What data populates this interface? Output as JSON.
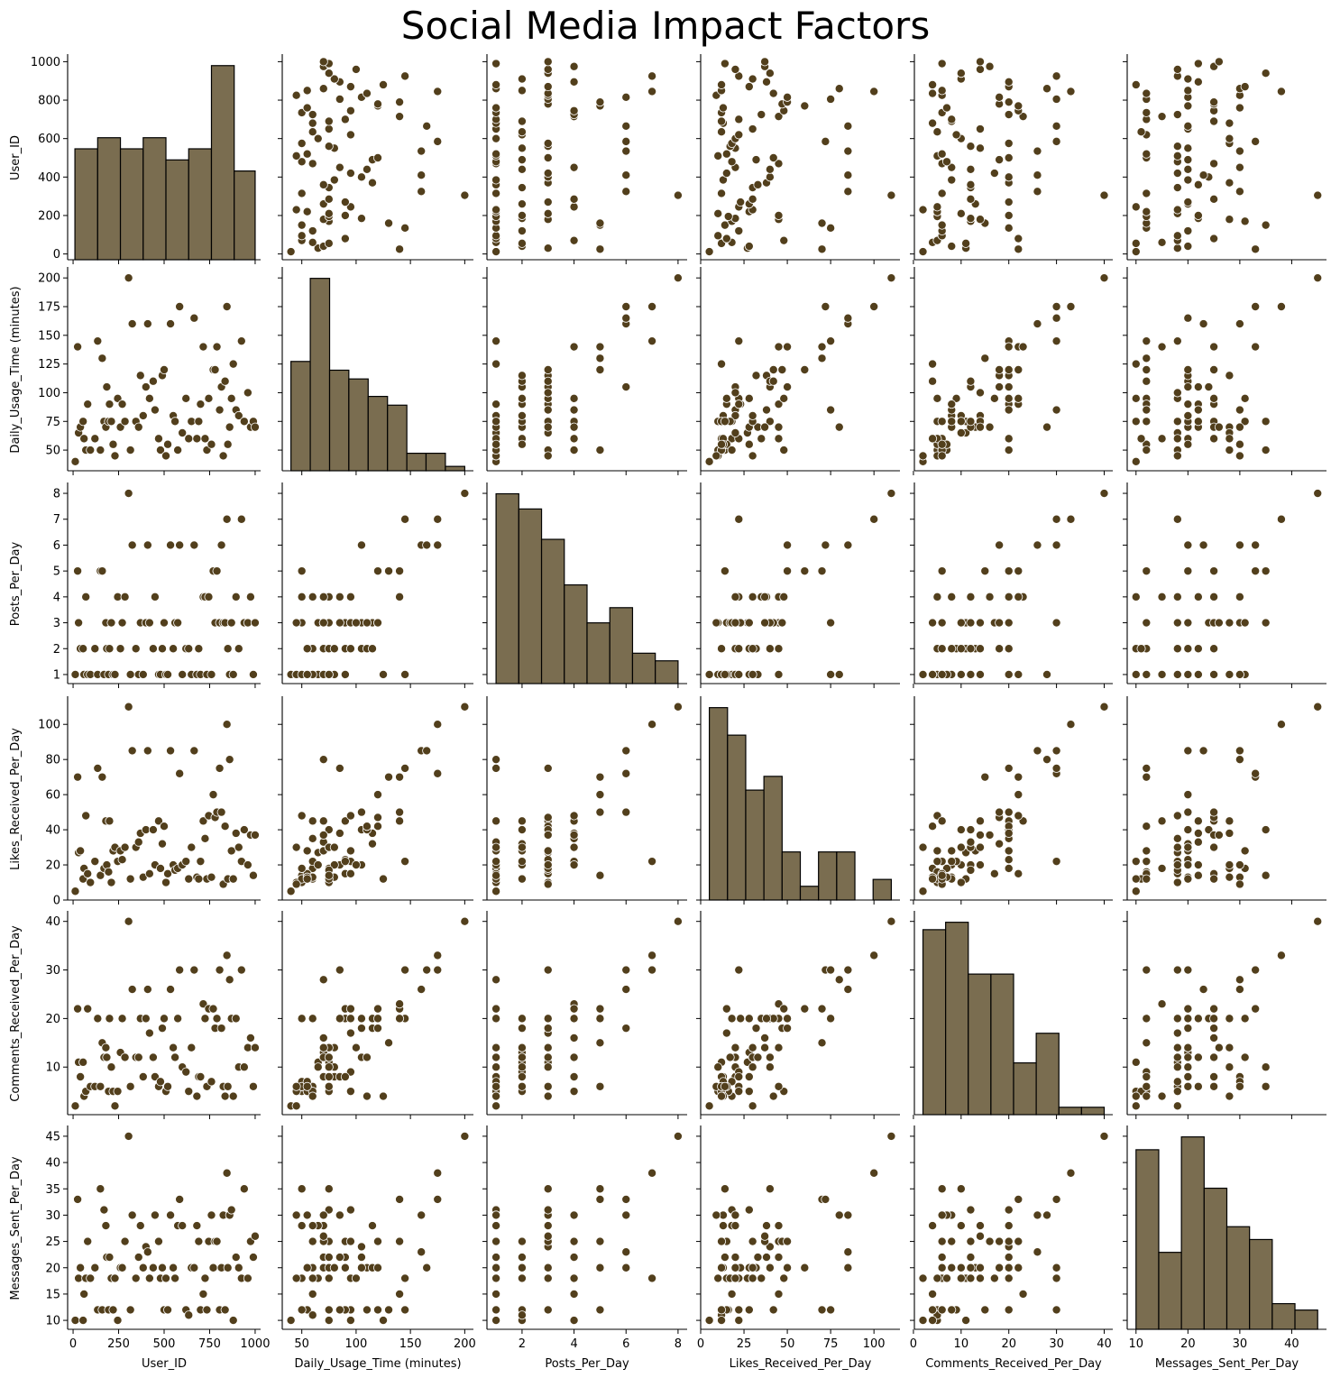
{
  "colors": {
    "point": "#523f1c",
    "point_edge": "#ffffff",
    "bar_fill": "#7a6d50",
    "bar_edge": "#000000",
    "axis": "#000000"
  },
  "chart_data": {
    "type": "scatter",
    "title": "Social Media Impact Factors",
    "variables": [
      "User_ID",
      "Daily_Usage_Time (minutes)",
      "Posts_Per_Day",
      "Likes_Received_Per_Day",
      "Comments_Received_Per_Day",
      "Messages_Sent_Per_Day"
    ],
    "diagonal_type": "histogram",
    "axes": [
      {
        "label": "User_ID",
        "range": [
          -30,
          1030
        ],
        "ticks": [
          0,
          200,
          400,
          600,
          800,
          1000
        ],
        "x_ticks": [
          0,
          250,
          500,
          750,
          1000
        ]
      },
      {
        "label": "Daily_Usage_Time (minutes)",
        "range": [
          32,
          208
        ],
        "ticks": [
          50,
          75,
          100,
          125,
          150,
          175,
          200
        ],
        "x_ticks": [
          50,
          100,
          150,
          200
        ]
      },
      {
        "label": "Posts_Per_Day",
        "range": [
          0.65,
          8.35
        ],
        "ticks": [
          1,
          2,
          3,
          4,
          5,
          6,
          7,
          8
        ],
        "x_ticks": [
          2,
          4,
          6,
          8
        ]
      },
      {
        "label": "Likes_Received_Per_Day",
        "range": [
          0,
          115
        ],
        "ticks": [
          0,
          20,
          40,
          60,
          80,
          100
        ],
        "x_ticks": [
          0,
          25,
          50,
          75,
          100
        ]
      },
      {
        "label": "Comments_Received_Per_Day",
        "range": [
          0.2,
          41.8
        ],
        "ticks": [
          10,
          20,
          30,
          40
        ],
        "x_ticks": [
          0,
          10,
          20,
          30,
          40
        ]
      },
      {
        "label": "Messages_Sent_Per_Day",
        "range": [
          8.3,
          46.7
        ],
        "ticks": [
          10,
          15,
          20,
          25,
          30,
          35,
          40,
          45
        ],
        "x_ticks": [
          10,
          20,
          30,
          40
        ]
      }
    ],
    "histograms": [
      {
        "edges": [
          10,
          135,
          260,
          385,
          510,
          635,
          760,
          885,
          1000
        ],
        "counts": [
          20,
          22,
          20,
          22,
          18,
          20,
          35,
          16
        ]
      },
      {
        "edges": [
          40,
          57.8,
          75.6,
          93.3,
          111.1,
          128.9,
          146.7,
          164.4,
          182.2,
          200
        ],
        "counts": [
          25,
          44,
          23,
          21,
          17,
          15,
          4,
          4,
          1
        ]
      },
      {
        "edges": [
          1,
          1.875,
          2.75,
          3.625,
          4.5,
          5.375,
          6.25,
          7.125,
          8
        ],
        "counts": [
          25,
          23,
          19,
          13,
          8,
          10,
          4,
          3
        ]
      },
      {
        "edges": [
          5,
          15.5,
          26,
          36.5,
          47,
          57.5,
          68,
          78.5,
          89,
          99.5,
          110
        ],
        "counts": [
          28,
          24,
          16,
          18,
          7,
          2,
          7,
          7,
          0,
          3
        ]
      },
      {
        "edges": [
          2,
          6.75,
          11.5,
          16.25,
          21,
          25.75,
          30.5,
          35.25,
          40
        ],
        "counts": [
          25,
          26,
          19,
          19,
          7,
          11,
          1,
          1
        ]
      },
      {
        "edges": [
          10,
          14.375,
          18.75,
          23.125,
          27.5,
          31.875,
          36.25,
          40.625,
          45
        ],
        "counts": [
          28,
          12,
          30,
          22,
          16,
          14,
          4,
          3
        ]
      }
    ],
    "points": [
      [
        12,
        40,
        1,
        5,
        2,
        10
      ],
      [
        25,
        140,
        5,
        70,
        22,
        33
      ],
      [
        30,
        65,
        3,
        27,
        11,
        18
      ],
      [
        40,
        70,
        2,
        28,
        8,
        20
      ],
      [
        55,
        75,
        2,
        12,
        11,
        10
      ],
      [
        60,
        60,
        1,
        18,
        4,
        15
      ],
      [
        70,
        50,
        4,
        48,
        5,
        18
      ],
      [
        80,
        90,
        1,
        15,
        22,
        25
      ],
      [
        95,
        50,
        1,
        10,
        6,
        18
      ],
      [
        120,
        60,
        2,
        22,
        6,
        20
      ],
      [
        135,
        145,
        1,
        75,
        20,
        12
      ],
      [
        150,
        50,
        5,
        14,
        6,
        35
      ],
      [
        160,
        130,
        5,
        70,
        15,
        12
      ],
      [
        170,
        75,
        1,
        18,
        12,
        31
      ],
      [
        180,
        70,
        3,
        45,
        14,
        28
      ],
      [
        185,
        105,
        2,
        20,
        12,
        22
      ],
      [
        195,
        75,
        1,
        16,
        5,
        12
      ],
      [
        200,
        90,
        2,
        45,
        20,
        22
      ],
      [
        210,
        75,
        3,
        10,
        10,
        18
      ],
      [
        220,
        55,
        1,
        28,
        5,
        12
      ],
      [
        230,
        45,
        1,
        30,
        2,
        18
      ],
      [
        245,
        95,
        4,
        22,
        5,
        10
      ],
      [
        260,
        70,
        2,
        28,
        13,
        20
      ],
      [
        270,
        90,
        3,
        23,
        20,
        20
      ],
      [
        285,
        75,
        4,
        30,
        12,
        25
      ],
      [
        305,
        200,
        8,
        110,
        40,
        45
      ],
      [
        315,
        50,
        1,
        12,
        6,
        12
      ],
      [
        325,
        160,
        6,
        85,
        26,
        30
      ],
      [
        345,
        75,
        2,
        30,
        12,
        18
      ],
      [
        360,
        70,
        1,
        33,
        12,
        22
      ],
      [
        370,
        115,
        3,
        38,
        20,
        28
      ],
      [
        385,
        80,
        1,
        13,
        8,
        20
      ],
      [
        400,
        105,
        3,
        40,
        20,
        24
      ],
      [
        410,
        160,
        6,
        85,
        26,
        23
      ],
      [
        420,
        95,
        3,
        15,
        17,
        18
      ],
      [
        440,
        110,
        2,
        40,
        12,
        20
      ],
      [
        450,
        85,
        4,
        20,
        8,
        30
      ],
      [
        470,
        60,
        1,
        45,
        6,
        25
      ],
      [
        480,
        50,
        1,
        18,
        7,
        18
      ],
      [
        490,
        115,
        2,
        32,
        18,
        20
      ],
      [
        500,
        120,
        3,
        42,
        20,
        12
      ],
      [
        510,
        45,
        1,
        10,
        5,
        18
      ],
      [
        520,
        55,
        1,
        15,
        6,
        12
      ],
      [
        535,
        160,
        6,
        85,
        26,
        30
      ],
      [
        550,
        80,
        2,
        20,
        14,
        20
      ],
      [
        560,
        75,
        3,
        17,
        12,
        18
      ],
      [
        575,
        50,
        3,
        18,
        20,
        28
      ],
      [
        585,
        175,
        6,
        72,
        30,
        33
      ],
      [
        600,
        65,
        1,
        20,
        10,
        28
      ],
      [
        620,
        95,
        2,
        22,
        9,
        12
      ],
      [
        635,
        60,
        2,
        12,
        5,
        11
      ],
      [
        650,
        75,
        1,
        30,
        14,
        20
      ],
      [
        665,
        165,
        6,
        85,
        30,
        20
      ],
      [
        680,
        60,
        1,
        13,
        4,
        28
      ],
      [
        690,
        75,
        2,
        12,
        8,
        25
      ],
      [
        700,
        90,
        1,
        22,
        8,
        12
      ],
      [
        715,
        140,
        4,
        45,
        23,
        15
      ],
      [
        725,
        60,
        4,
        35,
        20,
        18
      ],
      [
        735,
        50,
        1,
        12,
        6,
        12
      ],
      [
        745,
        95,
        4,
        48,
        22,
        25
      ],
      [
        760,
        55,
        1,
        13,
        7,
        30
      ],
      [
        770,
        120,
        5,
        60,
        22,
        20
      ],
      [
        780,
        120,
        3,
        47,
        18,
        25
      ],
      [
        790,
        140,
        5,
        50,
        20,
        25
      ],
      [
        805,
        85,
        3,
        75,
        30,
        12
      ],
      [
        815,
        105,
        6,
        50,
        18,
        20
      ],
      [
        825,
        45,
        3,
        9,
        6,
        30
      ],
      [
        835,
        110,
        3,
        42,
        4,
        12
      ],
      [
        845,
        175,
        7,
        100,
        33,
        38
      ],
      [
        850,
        55,
        2,
        12,
        6,
        20
      ],
      [
        860,
        70,
        1,
        80,
        28,
        30
      ],
      [
        870,
        95,
        3,
        28,
        20,
        31
      ],
      [
        880,
        125,
        1,
        12,
        4,
        10
      ],
      [
        895,
        85,
        4,
        38,
        20,
        22
      ],
      [
        910,
        80,
        2,
        30,
        10,
        20
      ],
      [
        925,
        145,
        7,
        22,
        30,
        18
      ],
      [
        940,
        75,
        3,
        40,
        10,
        35
      ],
      [
        960,
        100,
        3,
        20,
        14,
        18
      ],
      [
        975,
        70,
        4,
        37,
        16,
        25
      ],
      [
        990,
        75,
        1,
        14,
        6,
        22
      ],
      [
        1000,
        70,
        3,
        37,
        14,
        26
      ]
    ]
  }
}
